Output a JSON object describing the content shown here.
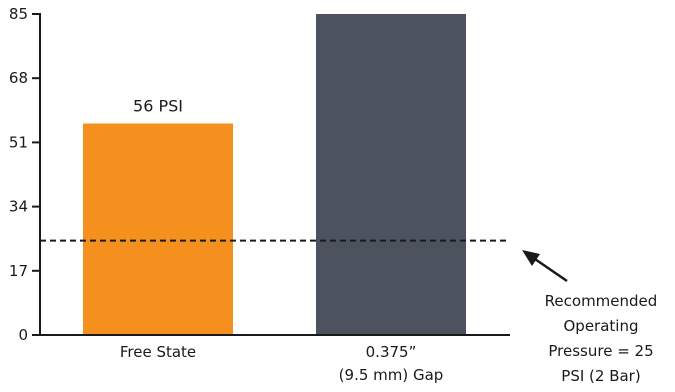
{
  "chart_data": {
    "type": "bar",
    "categories": [
      [
        "Free State"
      ],
      [
        "0.375”",
        "(9.5 mm) Gap"
      ]
    ],
    "values": [
      56,
      85
    ],
    "colors": [
      "#f5901f",
      "#4d535e"
    ],
    "data_labels": [
      "56 PSI",
      ""
    ],
    "ylim": [
      0,
      85
    ],
    "yticks": [
      0,
      17,
      34,
      51,
      68,
      85
    ],
    "grid": false,
    "reference_line": {
      "value": 25,
      "style": "dashed",
      "label_lines": [
        "Recommended",
        "Operating",
        "Pressure = 25",
        "PSI (2 Bar)"
      ]
    }
  }
}
